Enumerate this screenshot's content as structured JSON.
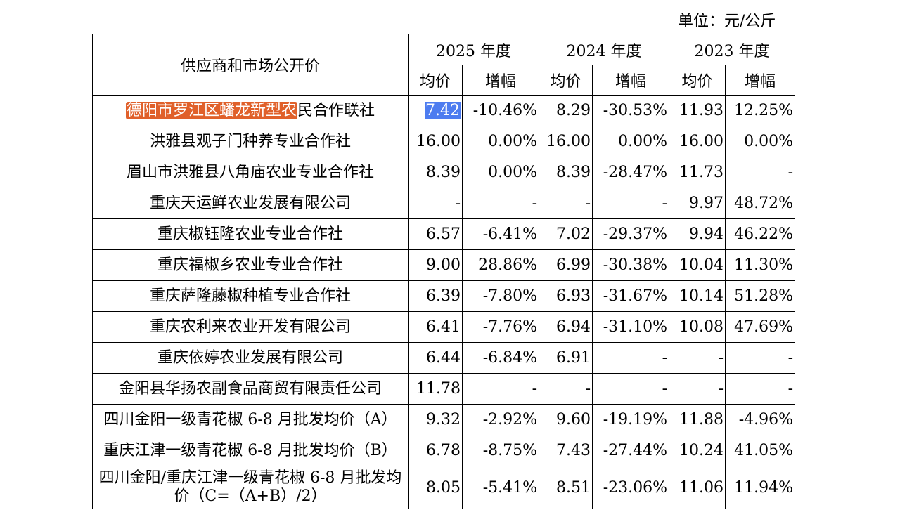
{
  "unit_label": "单位：元/公斤",
  "header": {
    "supplier_col": "供应商和市场公开价",
    "years": [
      "2025 年度",
      "2024 年度",
      "2023 年度"
    ],
    "avg_label": "均价",
    "change_label": "增幅"
  },
  "first_row": {
    "name_highlight": "德阳市罗江区蟠龙新型农",
    "name_rest": "民合作联社",
    "values": [
      "7.42",
      "-10.46%",
      "8.29",
      "-30.53%",
      "11.93",
      "12.25%"
    ]
  },
  "rows": [
    {
      "name": "洪雅县观子门种养专业合作社",
      "values": [
        "16.00",
        "0.00%",
        "16.00",
        "0.00%",
        "16.00",
        "0.00%"
      ]
    },
    {
      "name": "眉山市洪雅县八角庙农业专业合作社",
      "values": [
        "8.39",
        "0.00%",
        "8.39",
        "-28.47%",
        "11.73",
        "-"
      ]
    },
    {
      "name": "重庆天运鲜农业发展有限公司",
      "values": [
        "-",
        "-",
        "-",
        "-",
        "9.97",
        "48.72%"
      ]
    },
    {
      "name": "重庆椒钰隆农业专业合作社",
      "values": [
        "6.57",
        "-6.41%",
        "7.02",
        "-29.37%",
        "9.94",
        "46.22%"
      ]
    },
    {
      "name": "重庆福椒乡农业专业合作社",
      "values": [
        "9.00",
        "28.86%",
        "6.99",
        "-30.38%",
        "10.04",
        "11.30%"
      ]
    },
    {
      "name": "重庆萨隆藤椒种植专业合作社",
      "values": [
        "6.39",
        "-7.80%",
        "6.93",
        "-31.67%",
        "10.14",
        "51.28%"
      ]
    },
    {
      "name": "重庆农利来农业开发有限公司",
      "values": [
        "6.41",
        "-7.76%",
        "6.94",
        "-31.10%",
        "10.08",
        "47.69%"
      ]
    },
    {
      "name": "重庆依婷农业发展有限公司",
      "values": [
        "6.44",
        "-6.84%",
        "6.91",
        "-",
        "-",
        "-"
      ]
    },
    {
      "name": "金阳县华扬农副食品商贸有限责任公司",
      "values": [
        "11.78",
        "-",
        "-",
        "-",
        "-",
        "-"
      ]
    },
    {
      "name": "四川金阳一级青花椒 6-8 月批发均价（A）",
      "values": [
        "9.32",
        "-2.92%",
        "9.60",
        "-19.19%",
        "11.88",
        "-4.96%"
      ]
    },
    {
      "name": "重庆江津一级青花椒 6-8 月批发均价（B）",
      "values": [
        "6.78",
        "-8.75%",
        "7.43",
        "-27.44%",
        "10.24",
        "41.05%"
      ]
    },
    {
      "name": "四川金阳/重庆江津一级青花椒 6-8 月批发均价（C=（A+B）/2）",
      "values": [
        "8.05",
        "-5.41%",
        "8.51",
        "-23.06%",
        "11.06",
        "11.94%"
      ]
    }
  ],
  "colors": {
    "name_highlight_bg": "#e0602a",
    "value_highlight_bg": "#4d7cf0"
  }
}
